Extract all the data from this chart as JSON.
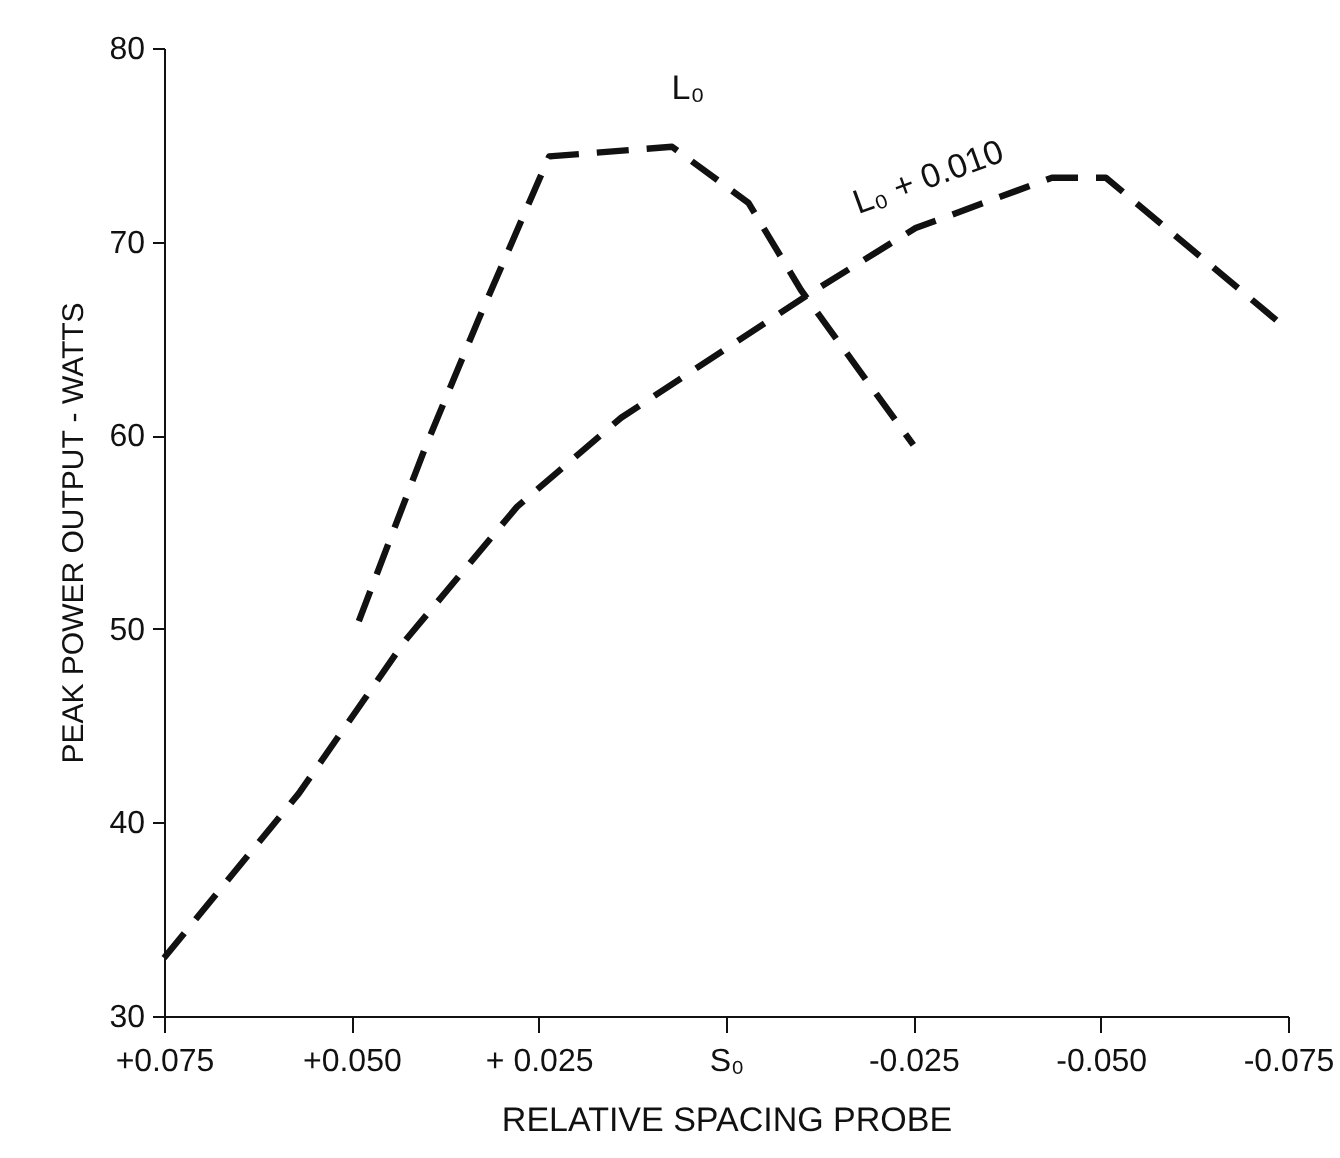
{
  "chart_data": {
    "type": "line",
    "xlabel": "RELATIVE  SPACING  PROBE",
    "ylabel": "PEAK POWER OUTPUT - WATTS",
    "xlim": [
      0.075,
      -0.075
    ],
    "ylim": [
      30,
      80
    ],
    "xticks": [
      {
        "value": 0.075,
        "label": "+0.075"
      },
      {
        "value": 0.05,
        "label": "+0.050"
      },
      {
        "value": 0.025,
        "label": "+ 0.025"
      },
      {
        "value": 0,
        "label": "S₀"
      },
      {
        "value": -0.025,
        "label": "-0.025"
      },
      {
        "value": -0.05,
        "label": "-0.050"
      },
      {
        "value": -0.075,
        "label": "-0.075"
      }
    ],
    "yticks": [
      30,
      40,
      50,
      60,
      70,
      80
    ],
    "grid": false,
    "line_style": "dashed",
    "marker": "none",
    "series": [
      {
        "name": "L₀",
        "color": "#111111",
        "x": [
          0.049,
          0.04,
          0.033,
          0.0236,
          0.0072,
          -0.003,
          -0.01,
          -0.025
        ],
        "values": [
          50.4,
          59.5,
          66.0,
          74.4,
          74.9,
          72.0,
          67.5,
          59.5
        ]
      },
      {
        "name": "L₀ + 0.010",
        "color": "#111111",
        "x": [
          0.075,
          0.057,
          0.0428,
          0.0279,
          0.014,
          -0.0115,
          -0.0253,
          -0.0435,
          -0.0507,
          -0.0742
        ],
        "values": [
          33.0,
          41.5,
          49.4,
          56.3,
          60.9,
          67.4,
          70.7,
          73.3,
          73.3,
          65.7
        ]
      }
    ]
  }
}
